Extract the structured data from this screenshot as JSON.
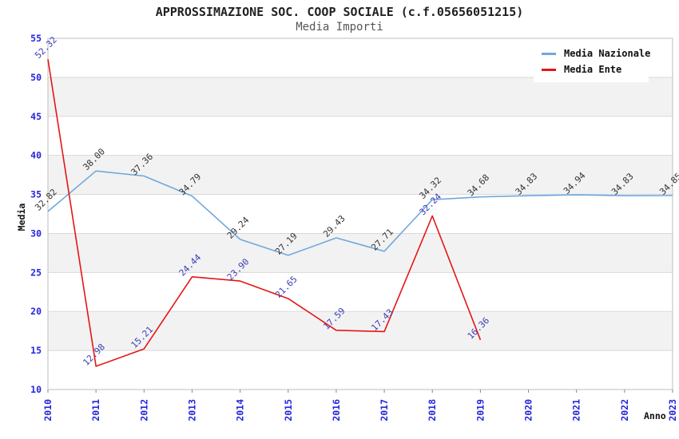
{
  "chart_data": {
    "type": "line",
    "title": "APPROSSIMAZIONE SOC. COOP SOCIALE (c.f.05656051215)",
    "subtitle": "Media Importi",
    "xlabel": "Anno",
    "ylabel": "Media",
    "x": [
      2010,
      2011,
      2012,
      2013,
      2014,
      2015,
      2016,
      2017,
      2018,
      2019,
      2020,
      2021,
      2022,
      2023
    ],
    "series": [
      {
        "name": "Media Nazionale",
        "color": "#6fa8dc",
        "label_color": "#333333",
        "values": [
          32.82,
          38.0,
          37.36,
          34.79,
          29.24,
          27.19,
          29.43,
          27.71,
          34.32,
          34.68,
          34.83,
          34.94,
          34.83,
          34.85
        ]
      },
      {
        "name": "Media Ente",
        "color": "#e51515",
        "label_color": "#3b3bb8",
        "values": [
          52.32,
          12.98,
          15.21,
          24.44,
          23.9,
          21.65,
          17.59,
          17.43,
          32.24,
          16.36
        ]
      }
    ],
    "ylim": [
      10,
      55
    ],
    "ytick_step": 5,
    "grid": true,
    "legend_position": "top-right",
    "band_fill": "#f2f2f2",
    "grid_color": "#d9d9d9",
    "axis_color": "#c8c8c8",
    "tick_color": "#888888",
    "tick_label_color": "#2424e0"
  }
}
